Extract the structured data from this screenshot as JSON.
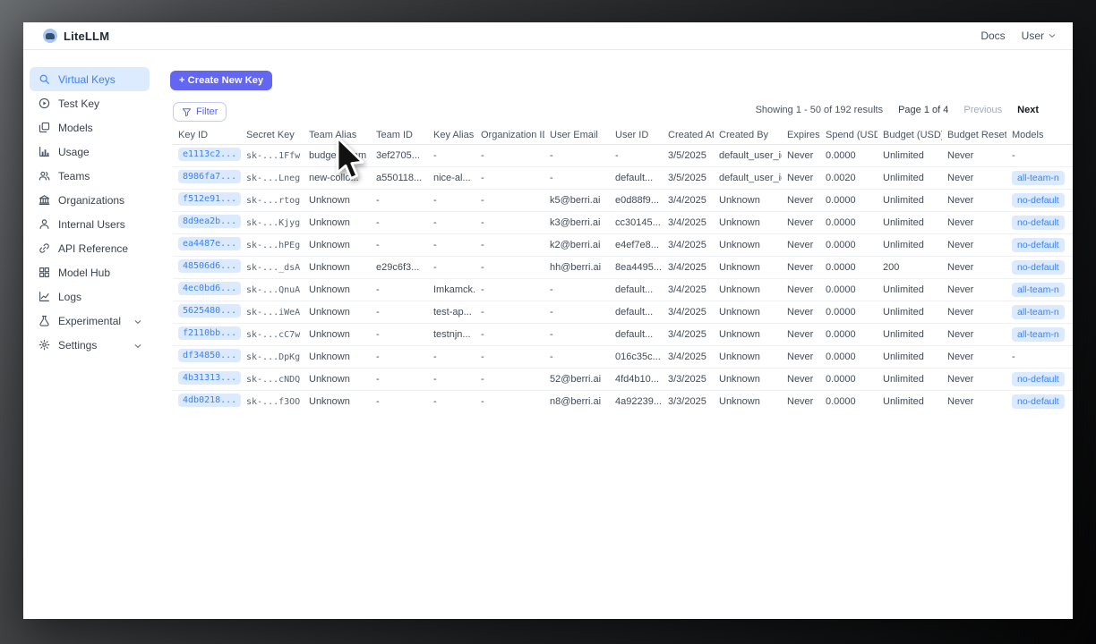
{
  "header": {
    "brand": "LiteLLM",
    "logo_icon": "llama-logo-icon",
    "docs_link": "Docs",
    "user_label": "User",
    "user_chevron_icon": "chevron-down-icon"
  },
  "sidebar": {
    "items": [
      {
        "label": "Virtual Keys",
        "icon": "search-icon",
        "active": true,
        "chevron": false
      },
      {
        "label": "Test Key",
        "icon": "play-circle-icon",
        "active": false,
        "chevron": false
      },
      {
        "label": "Models",
        "icon": "layers-icon",
        "active": false,
        "chevron": false
      },
      {
        "label": "Usage",
        "icon": "bar-chart-icon",
        "active": false,
        "chevron": false
      },
      {
        "label": "Teams",
        "icon": "users-icon",
        "active": false,
        "chevron": false
      },
      {
        "label": "Organizations",
        "icon": "bank-icon",
        "active": false,
        "chevron": false
      },
      {
        "label": "Internal Users",
        "icon": "user-icon",
        "active": false,
        "chevron": false
      },
      {
        "label": "API Reference",
        "icon": "link-icon",
        "active": false,
        "chevron": false
      },
      {
        "label": "Model Hub",
        "icon": "grid-icon",
        "active": false,
        "chevron": false
      },
      {
        "label": "Logs",
        "icon": "line-chart-icon",
        "active": false,
        "chevron": false
      },
      {
        "label": "Experimental",
        "icon": "flask-icon",
        "active": false,
        "chevron": true
      },
      {
        "label": "Settings",
        "icon": "gear-icon",
        "active": false,
        "chevron": true
      }
    ]
  },
  "toolbar": {
    "create_button_label": "+ Create New Key",
    "filter_button_label": "Filter",
    "filter_icon": "filter-icon"
  },
  "pagination": {
    "showing": "Showing 1 - 50 of 192 results",
    "page": "Page 1 of 4",
    "previous_label": "Previous",
    "next_label": "Next"
  },
  "colors": {
    "accent": "#6366f1",
    "active_item_bg": "#dcebfd",
    "badge_bg": "#dbeafe",
    "badge_text": "#3b82f6"
  },
  "table": {
    "columns": [
      "Key ID",
      "Secret Key",
      "Team Alias",
      "Team ID",
      "Key Alias",
      "Organization ID",
      "User Email",
      "User ID",
      "Created At",
      "Created By",
      "Expires",
      "Spend (USD)",
      "Budget (USD)",
      "Budget Reset",
      "Models"
    ],
    "rows": [
      {
        "cells": [
          "e1113c2...",
          "sk-...1Ffw",
          "budget_team",
          "3ef2705...",
          "-",
          "-",
          "-",
          "-",
          "3/5/2025",
          "default_user_id",
          "Never",
          "0.0000",
          "Unlimited",
          "Never",
          "-"
        ],
        "models_badge": false
      },
      {
        "cells": [
          "8986fa7...",
          "sk-...Lneg",
          "new-collo...",
          "a550118...",
          "nice-al...",
          "-",
          "-",
          "default...",
          "3/5/2025",
          "default_user_id",
          "Never",
          "0.0020",
          "Unlimited",
          "Never",
          "all-team-n"
        ],
        "models_badge": true
      },
      {
        "cells": [
          "f512e91...",
          "sk-...rtog",
          "Unknown",
          "-",
          "-",
          "-",
          "k5@berri.ai",
          "e0d88f9...",
          "3/4/2025",
          "Unknown",
          "Never",
          "0.0000",
          "Unlimited",
          "Never",
          "no-default"
        ],
        "models_badge": true
      },
      {
        "cells": [
          "8d9ea2b...",
          "sk-...Kjyg",
          "Unknown",
          "-",
          "-",
          "-",
          "k3@berri.ai",
          "cc30145...",
          "3/4/2025",
          "Unknown",
          "Never",
          "0.0000",
          "Unlimited",
          "Never",
          "no-default"
        ],
        "models_badge": true
      },
      {
        "cells": [
          "ea4487e...",
          "sk-...hPEg",
          "Unknown",
          "-",
          "-",
          "-",
          "k2@berri.ai",
          "e4ef7e8...",
          "3/4/2025",
          "Unknown",
          "Never",
          "0.0000",
          "Unlimited",
          "Never",
          "no-default"
        ],
        "models_badge": true
      },
      {
        "cells": [
          "48506d6...",
          "sk-..._dsA",
          "Unknown",
          "e29c6f3...",
          "-",
          "-",
          "hh@berri.ai",
          "8ea4495...",
          "3/4/2025",
          "Unknown",
          "Never",
          "0.0000",
          "200",
          "Never",
          "no-default"
        ],
        "models_badge": true
      },
      {
        "cells": [
          "4ec0bd6...",
          "sk-...QnuA",
          "Unknown",
          "-",
          "Imkamck...",
          "-",
          "-",
          "default...",
          "3/4/2025",
          "Unknown",
          "Never",
          "0.0000",
          "Unlimited",
          "Never",
          "all-team-n"
        ],
        "models_badge": true
      },
      {
        "cells": [
          "5625480...",
          "sk-...iWeA",
          "Unknown",
          "-",
          "test-ap...",
          "-",
          "-",
          "default...",
          "3/4/2025",
          "Unknown",
          "Never",
          "0.0000",
          "Unlimited",
          "Never",
          "all-team-n"
        ],
        "models_badge": true
      },
      {
        "cells": [
          "f2110bb...",
          "sk-...cC7w",
          "Unknown",
          "-",
          "testnjn...",
          "-",
          "-",
          "default...",
          "3/4/2025",
          "Unknown",
          "Never",
          "0.0000",
          "Unlimited",
          "Never",
          "all-team-n"
        ],
        "models_badge": true
      },
      {
        "cells": [
          "df34850...",
          "sk-...DpKg",
          "Unknown",
          "-",
          "-",
          "-",
          "-",
          "016c35c...",
          "3/4/2025",
          "Unknown",
          "Never",
          "0.0000",
          "Unlimited",
          "Never",
          "-"
        ],
        "models_badge": false
      },
      {
        "cells": [
          "4b31313...",
          "sk-...cNDQ",
          "Unknown",
          "-",
          "-",
          "-",
          "52@berri.ai",
          "4fd4b10...",
          "3/3/2025",
          "Unknown",
          "Never",
          "0.0000",
          "Unlimited",
          "Never",
          "no-default"
        ],
        "models_badge": true
      },
      {
        "cells": [
          "4db0218...",
          "sk-...f3OO",
          "Unknown",
          "-",
          "-",
          "-",
          "n8@berri.ai",
          "4a92239...",
          "3/3/2025",
          "Unknown",
          "Never",
          "0.0000",
          "Unlimited",
          "Never",
          "no-default"
        ],
        "models_badge": true
      }
    ]
  }
}
